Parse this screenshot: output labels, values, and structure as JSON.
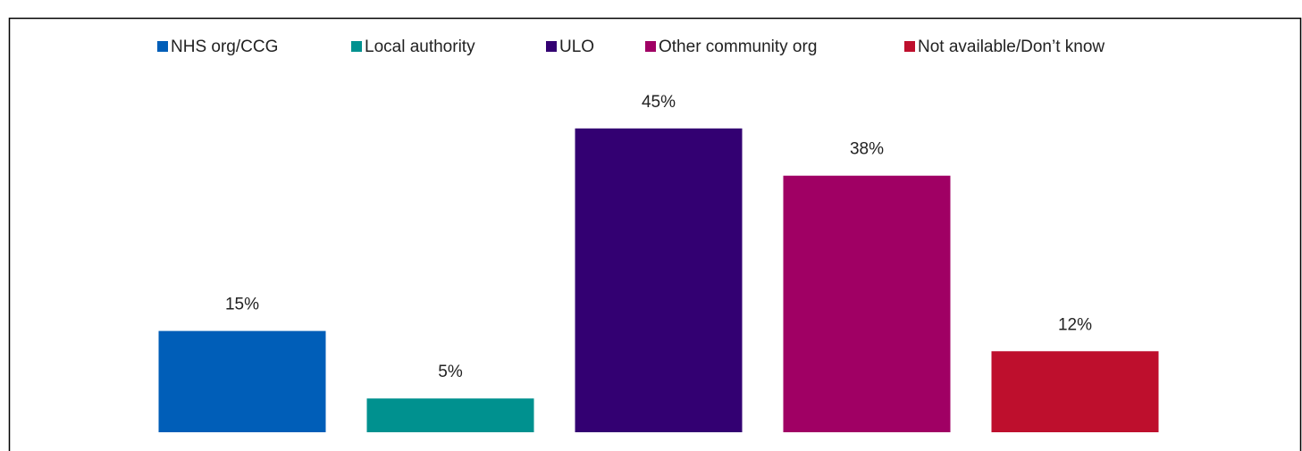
{
  "chart_data": {
    "type": "bar",
    "categories": [
      "NHS org/CCG",
      "Local authority",
      "ULO",
      "Other community org",
      "Not available/Don’t know"
    ],
    "values": [
      15,
      5,
      45,
      38,
      12
    ],
    "value_labels": [
      "15%",
      "5%",
      "45%",
      "38%",
      "12%"
    ],
    "colors": [
      "#005eb8",
      "#00918f",
      "#330072",
      "#a00064",
      "#be0f2d"
    ],
    "ylim": [
      0,
      50
    ],
    "legend": "top"
  }
}
